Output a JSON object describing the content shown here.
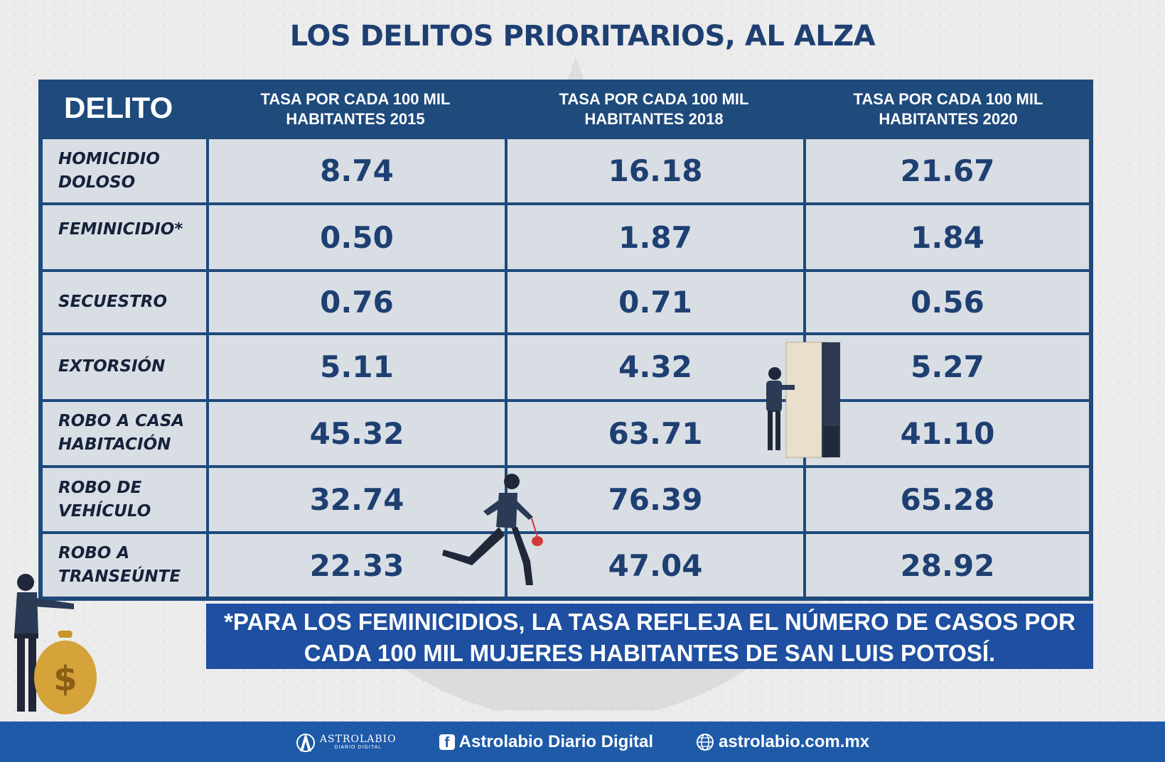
{
  "title": "LOS DELITOS PRIORITARIOS, AL ALZA",
  "table": {
    "header_delito": "DELITO",
    "header_2015": "TASA POR CADA 100 MIL\nHABITANTES 2015",
    "header_2018": "TASA POR CADA 100 MIL\nHABITANTES 2018",
    "header_2020": "TASA POR CADA 100 MIL\nHABITANTES 2020",
    "rows": [
      {
        "crime": "HOMICIDIO\nDOLOSO",
        "v2015": "8.74",
        "v2018": "16.18",
        "v2020": "21.67"
      },
      {
        "crime": "FEMINICIDIO*",
        "v2015": "0.50",
        "v2018": "1.87",
        "v2020": "1.84"
      },
      {
        "crime": "SECUESTRO",
        "v2015": "0.76",
        "v2018": "0.71",
        "v2020": "0.56"
      },
      {
        "crime": "EXTORSIÓN",
        "v2015": "5.11",
        "v2018": "4.32",
        "v2020": "5.27"
      },
      {
        "crime": "ROBO A CASA\nHABITACIÓN",
        "v2015": "45.32",
        "v2018": "63.71",
        "v2020": "41.10"
      },
      {
        "crime": "ROBO DE\nVEHÍCULO",
        "v2015": "32.74",
        "v2018": "76.39",
        "v2020": "65.28"
      },
      {
        "crime": "ROBO A\nTRANSEÚNTE",
        "v2015": "22.33",
        "v2018": "47.04",
        "v2020": "28.92"
      }
    ]
  },
  "note": "*PARA LOS FEMINICIDIOS, LA TASA REFLEJA EL NÚMERO DE CASOS POR CADA 100 MIL MUJERES HABITANTES DE SAN LUIS POTOSÍ.",
  "footer": {
    "logo_name": "ASTROLABIO",
    "logo_sub": "DIARIO DIGITAL",
    "facebook": "Astrolabio Diario Digital",
    "website": "astrolabio.com.mx"
  },
  "colors": {
    "title": "#1e3f72",
    "table_border": "#1e4a7c",
    "note_bg": "#1e4fa0",
    "footer_bg": "#1e5aa8"
  },
  "icons": [
    "facebook-icon",
    "globe-icon",
    "astrolabio-logo",
    "money-bag-icon"
  ]
}
